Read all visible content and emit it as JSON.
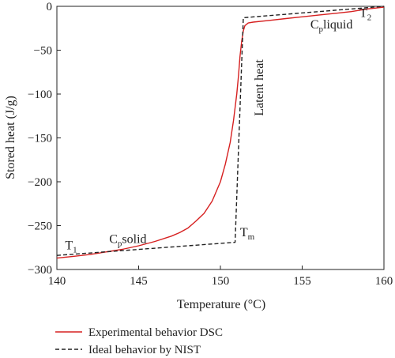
{
  "chart_data": {
    "type": "line",
    "title": "",
    "xlabel": "Temperature (°C)",
    "ylabel": "Stored heat (J/g)",
    "xlim": [
      140,
      160
    ],
    "ylim": [
      -300,
      0
    ],
    "xticks": [
      140,
      145,
      150,
      155,
      160
    ],
    "yticks": [
      -300,
      -250,
      -200,
      -150,
      -100,
      -50,
      0
    ],
    "grid": false,
    "legend_position": "bottom-left",
    "series": [
      {
        "name": "Experimental behavior DSC",
        "color": "#d62020",
        "dash": "solid",
        "x": [
          140,
          141,
          142,
          143,
          144,
          145,
          146,
          147,
          147.5,
          148,
          148.5,
          149,
          149.5,
          150,
          150.3,
          150.6,
          150.8,
          151,
          151.1,
          151.2,
          151.3,
          151.4,
          151.5,
          151.7,
          152,
          153,
          154,
          155,
          156,
          157,
          158,
          159,
          160
        ],
        "y": [
          -287,
          -285,
          -283,
          -280,
          -277,
          -273,
          -268,
          -262,
          -258,
          -253,
          -245,
          -236,
          -222,
          -200,
          -180,
          -155,
          -130,
          -100,
          -80,
          -57,
          -40,
          -28,
          -22,
          -19,
          -18,
          -16,
          -14,
          -12,
          -10,
          -8,
          -6,
          -3,
          -1
        ]
      },
      {
        "name": "Ideal behavior by NIST",
        "color": "#222222",
        "dash": "dashed",
        "x": [
          140,
          150.9,
          151.4,
          160
        ],
        "y": [
          -284,
          -269,
          -13,
          0
        ]
      }
    ],
    "annotations": [
      {
        "id": "t1",
        "text": "T",
        "sub": "1",
        "x": 140.5,
        "y": -277
      },
      {
        "id": "cpsolid",
        "text_pre": "C",
        "sub": "p",
        "text_post": "solid",
        "x": 143.2,
        "y": -270
      },
      {
        "id": "tm",
        "text": "T",
        "sub": "m",
        "x": 151.2,
        "y": -262
      },
      {
        "id": "latent",
        "text": "Latent heat",
        "x": 152.6,
        "y": -125,
        "rotate": -90
      },
      {
        "id": "cpliquid",
        "text_pre": "C",
        "sub": "p",
        "text_post": "liquid",
        "x": 155.5,
        "y": -25
      },
      {
        "id": "t2",
        "text": "T",
        "sub": "2",
        "x": 158.5,
        "y": -12
      }
    ]
  }
}
